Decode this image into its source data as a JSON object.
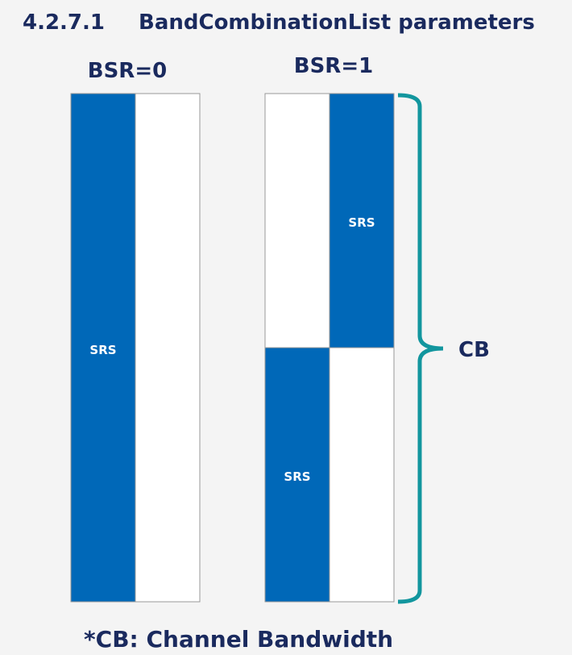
{
  "heading": {
    "number": "4.2.7.1",
    "title": "BandCombinationList parameters"
  },
  "panels": [
    {
      "label": "BSR=0",
      "blocks": [
        "SRS"
      ]
    },
    {
      "label": "BSR=1",
      "blocks": [
        "SRS",
        "SRS"
      ]
    }
  ],
  "brace_label": "CB",
  "footnote": "*CB: Channel Bandwidth"
}
